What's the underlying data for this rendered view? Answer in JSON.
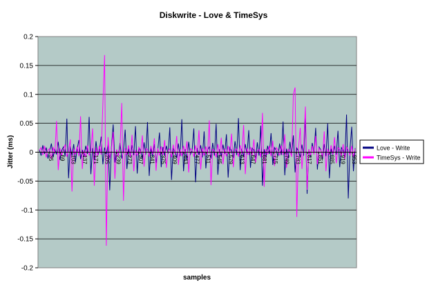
{
  "chart_data": {
    "type": "line",
    "title": "Diskwrite - Love & TimeSys",
    "xlabel": "samples",
    "ylabel": "Jitter (ms)",
    "ylim": [
      -0.2,
      0.2
    ],
    "y_ticks": [
      "0.2",
      "0.15",
      "0.1",
      "0.05",
      "0",
      "-0.05",
      "-0.1",
      "-0.15",
      "-0.2"
    ],
    "x_tick_labels": [
      "35",
      "69",
      "103",
      "137",
      "171",
      "205",
      "239",
      "273",
      "307",
      "341",
      "375",
      "409",
      "443",
      "477",
      "511",
      "545",
      "579",
      "613",
      "647",
      "681",
      "715",
      "749",
      "783",
      "817",
      "851",
      "885",
      "919",
      "953"
    ],
    "grid": "horizontal",
    "legend_position": "right",
    "series": [
      {
        "name": "Love - Write",
        "color": "#000080",
        "values": [
          0.004,
          -0.006,
          0.012,
          -0.003,
          0.008,
          -0.011,
          0.002,
          0.015,
          -0.009,
          0.006,
          -0.004,
          0.018,
          -0.013,
          0.003,
          0.009,
          -0.007,
          0.058,
          -0.045,
          0.01,
          -0.006,
          0.014,
          -0.017,
          0.005,
          0.021,
          -0.012,
          0.004,
          -0.008,
          0.011,
          -0.003,
          0.061,
          -0.038,
          0.007,
          -0.014,
          0.019,
          -0.006,
          0.002,
          0.027,
          -0.021,
          0.008,
          -0.004,
          0.013,
          -0.066,
          0.009,
          0.048,
          -0.018,
          0.004,
          -0.007,
          0.016,
          -0.011,
          0.003,
          0.039,
          -0.029,
          0.006,
          -0.009,
          0.012,
          -0.005,
          0.045,
          -0.037,
          0.008,
          0.003,
          -0.012,
          0.017,
          -0.004,
          0.052,
          -0.041,
          0.007,
          -0.008,
          0.014,
          -0.019,
          0.004,
          0.034,
          -0.026,
          0.009,
          -0.006,
          0.011,
          -0.003,
          0.043,
          -0.048,
          0.006,
          0.002,
          -0.01,
          0.015,
          -0.007,
          0.057,
          -0.033,
          0.005,
          -0.013,
          0.018,
          -0.004,
          0.003,
          0.041,
          -0.052,
          0.007,
          -0.005,
          0.012,
          -0.009,
          0.036,
          -0.028,
          0.004,
          0.009,
          -0.011,
          0.016,
          -0.006,
          0.049,
          -0.039,
          0.005,
          -0.007,
          0.013,
          -0.003,
          0.031,
          -0.044,
          0.008,
          0.002,
          -0.01,
          0.019,
          -0.005,
          0.059,
          -0.031,
          0.006,
          -0.008,
          0.014,
          -0.004,
          0.038,
          -0.027,
          0.007,
          0.004,
          -0.012,
          0.017,
          -0.006,
          0.046,
          -0.058,
          0.005,
          -0.009,
          0.011,
          -0.003,
          0.033,
          -0.022,
          0.008,
          0.003,
          -0.007,
          0.015,
          -0.005,
          0.053,
          -0.04,
          0.006,
          -0.011,
          0.018,
          -0.004,
          0.029,
          -0.035,
          0.007,
          0.002,
          -0.009,
          0.013,
          -0.006,
          0.062,
          -0.072,
          0.005,
          -0.008,
          0.016,
          -0.003,
          0.042,
          -0.03,
          0.009,
          0.004,
          -0.012,
          0.014,
          -0.007,
          0.05,
          -0.045,
          0.006,
          -0.005,
          0.011,
          -0.004,
          0.037,
          -0.026,
          0.008,
          0.003,
          -0.01,
          0.065,
          -0.08,
          0.005,
          0.044,
          -0.033,
          0.007
        ]
      },
      {
        "name": "TimeSys - Write",
        "color": "#ff00ff",
        "values": [
          0.003,
          0.008,
          -0.005,
          0.011,
          -0.009,
          0.004,
          0.006,
          -0.012,
          0.009,
          -0.003,
          0.054,
          -0.031,
          0.007,
          -0.006,
          0.005,
          0.013,
          -0.008,
          0.002,
          0.022,
          -0.068,
          0.006,
          -0.004,
          0.01,
          -0.007,
          0.062,
          -0.029,
          0.004,
          -0.009,
          0.012,
          -0.005,
          0.003,
          0.041,
          -0.058,
          0.008,
          -0.006,
          0.011,
          -0.004,
          0.084,
          0.168,
          -0.162,
          0.026,
          -0.011,
          0.006,
          0.035,
          -0.046,
          0.005,
          -0.007,
          0.009,
          0.085,
          -0.084,
          0.007,
          -0.005,
          0.012,
          -0.008,
          0.03,
          -0.033,
          0.004,
          -0.006,
          0.009,
          -0.003,
          0.029,
          -0.025,
          0.006,
          0.005,
          -0.008,
          0.011,
          -0.004,
          0.024,
          -0.032,
          0.007,
          -0.006,
          0.01,
          -0.005,
          0.021,
          -0.027,
          0.003,
          0.006,
          -0.009,
          0.013,
          -0.004,
          0.028,
          -0.022,
          0.005,
          -0.007,
          0.011,
          -0.003,
          0.019,
          -0.035,
          0.006,
          0.004,
          -0.008,
          0.012,
          -0.005,
          0.038,
          -0.03,
          0.007,
          -0.006,
          0.01,
          -0.004,
          0.055,
          -0.057,
          0.005,
          0.003,
          -0.009,
          0.014,
          -0.005,
          0.025,
          -0.021,
          0.006,
          -0.007,
          0.011,
          -0.003,
          0.032,
          -0.026,
          0.004,
          0.006,
          -0.008,
          0.012,
          -0.004,
          0.047,
          -0.038,
          0.007,
          -0.005,
          0.009,
          -0.006,
          0.022,
          -0.018,
          0.003,
          0.005,
          -0.009,
          0.068,
          -0.06,
          0.006,
          -0.004,
          0.011,
          -0.007,
          0.02,
          -0.024,
          0.008,
          0.004,
          -0.006,
          0.012,
          -0.005,
          0.031,
          -0.027,
          0.005,
          0.002,
          -0.008,
          0.1,
          0.112,
          -0.112,
          0.006,
          0.042,
          -0.029,
          0.009,
          0.079,
          -0.065,
          0.005,
          -0.006,
          0.011,
          -0.004,
          0.028,
          -0.021,
          0.007,
          0.003,
          -0.009,
          0.036,
          -0.033,
          0.006,
          -0.005,
          0.012,
          -0.004,
          0.026,
          -0.019,
          0.008,
          0.005,
          -0.007,
          0.014,
          -0.012,
          0.009,
          0.004,
          -0.006,
          0.011,
          -0.008,
          0.006
        ]
      }
    ]
  }
}
